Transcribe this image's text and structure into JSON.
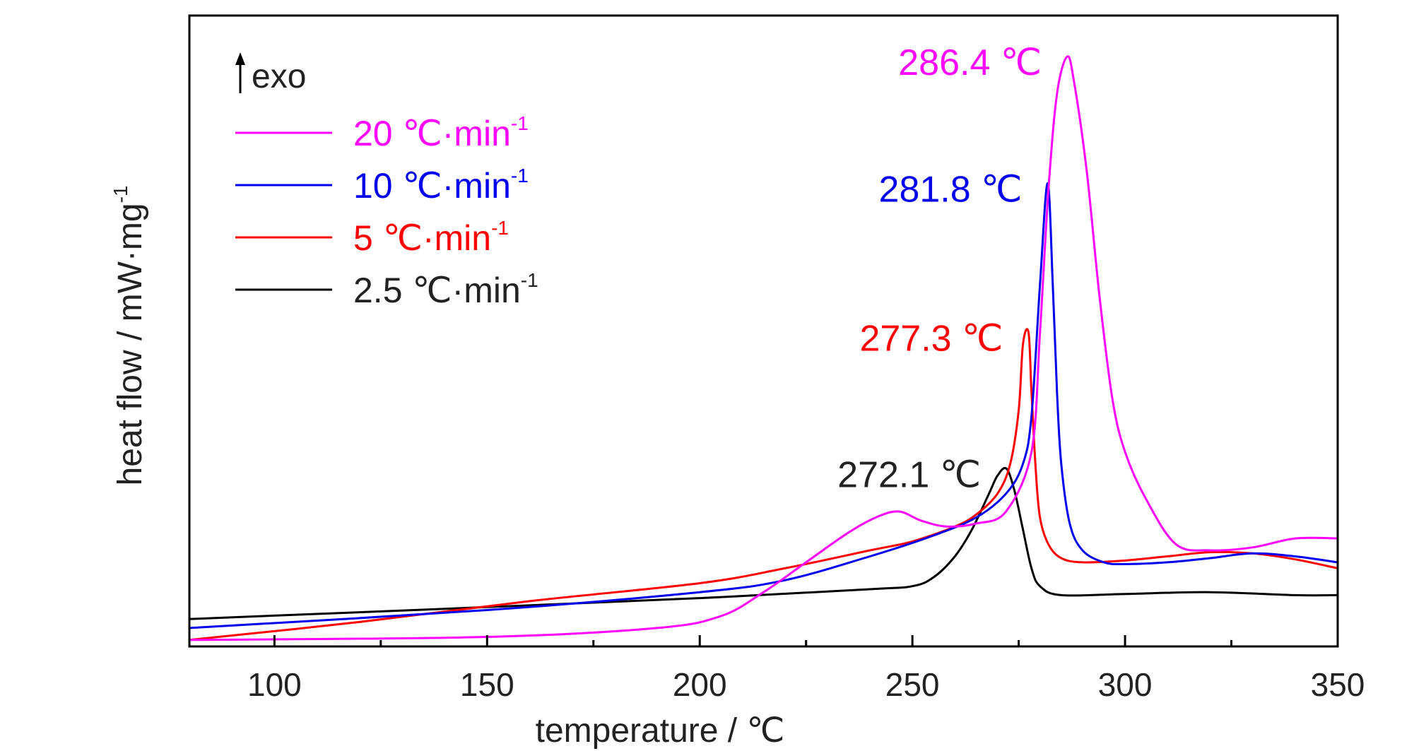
{
  "chart_data": {
    "type": "line",
    "xlabel": "temperature / ℃",
    "ylabel": "heat flow / mW·mg",
    "ylabel_sup": "-1",
    "xlim": [
      80,
      350
    ],
    "ylim": [
      0,
      10
    ],
    "x_ticks": [
      "100",
      "150",
      "200",
      "250",
      "300",
      "350"
    ],
    "x_tick_values": [
      100,
      150,
      200,
      250,
      300,
      350
    ],
    "x_minor_step": 25,
    "legend_position": "top-left",
    "exo_label": "exo",
    "series": [
      {
        "name": "20 ℃·min",
        "sup": "-1",
        "color": "#ff00ff",
        "peak_label": "286.4 ℃",
        "x": [
          80,
          150,
          190,
          205,
          215,
          225,
          235,
          242,
          247,
          252,
          258,
          265,
          272,
          278,
          280,
          282,
          284,
          286.4,
          288,
          291,
          294,
          297,
          300,
          305,
          312,
          320,
          330,
          340,
          350
        ],
        "y": [
          0.05,
          0.1,
          0.25,
          0.45,
          0.85,
          1.35,
          1.85,
          2.12,
          2.2,
          2.05,
          1.95,
          2.0,
          2.2,
          3.2,
          5.2,
          7.6,
          9.2,
          9.82,
          9.4,
          7.9,
          5.8,
          4.1,
          3.2,
          2.4,
          1.65,
          1.55,
          1.6,
          1.75,
          1.75
        ]
      },
      {
        "name": "10 ℃·min",
        "sup": "-1",
        "color": "#0000ee",
        "peak_label": "281.8 ℃",
        "x": [
          80,
          150,
          200,
          220,
          240,
          255,
          265,
          272,
          276,
          278,
          280,
          281.8,
          283,
          284,
          285,
          287,
          290,
          295,
          300,
          310,
          320,
          330,
          340,
          350
        ],
        "y": [
          0.25,
          0.55,
          0.85,
          1.05,
          1.45,
          1.8,
          2.1,
          2.5,
          3.0,
          3.8,
          6.0,
          7.7,
          6.0,
          4.2,
          3.0,
          2.0,
          1.55,
          1.35,
          1.32,
          1.35,
          1.42,
          1.5,
          1.45,
          1.35
        ]
      },
      {
        "name": "5 ℃·min",
        "sup": "-1",
        "color": "#ff0000",
        "peak_label": "277.3 ℃",
        "x": [
          80,
          120,
          160,
          200,
          220,
          240,
          250,
          260,
          265,
          270,
          273,
          275,
          276,
          277.3,
          278,
          279,
          280,
          282,
          285,
          290,
          300,
          310,
          320,
          330,
          340,
          350
        ],
        "y": [
          0.05,
          0.35,
          0.7,
          1.0,
          1.25,
          1.55,
          1.7,
          1.95,
          2.15,
          2.5,
          3.0,
          3.9,
          5.0,
          5.2,
          4.2,
          2.9,
          2.1,
          1.65,
          1.42,
          1.35,
          1.38,
          1.45,
          1.52,
          1.5,
          1.4,
          1.25
        ]
      },
      {
        "name": "2.5 ℃·min",
        "sup": "-1",
        "color": "#000000",
        "peak_label": "272.1 ℃",
        "x": [
          80,
          150,
          200,
          240,
          250,
          255,
          260,
          264,
          268,
          270,
          272.1,
          274,
          276,
          278,
          280,
          285,
          300,
          320,
          340,
          350
        ],
        "y": [
          0.4,
          0.6,
          0.75,
          0.9,
          0.95,
          1.1,
          1.45,
          1.9,
          2.5,
          2.8,
          2.92,
          2.55,
          1.9,
          1.25,
          0.95,
          0.8,
          0.82,
          0.85,
          0.8,
          0.8
        ]
      }
    ],
    "peak_label_xy": [
      [
        286.4,
        9.82
      ],
      [
        281.8,
        7.7
      ],
      [
        277.3,
        5.2
      ],
      [
        272.1,
        2.92
      ]
    ]
  }
}
